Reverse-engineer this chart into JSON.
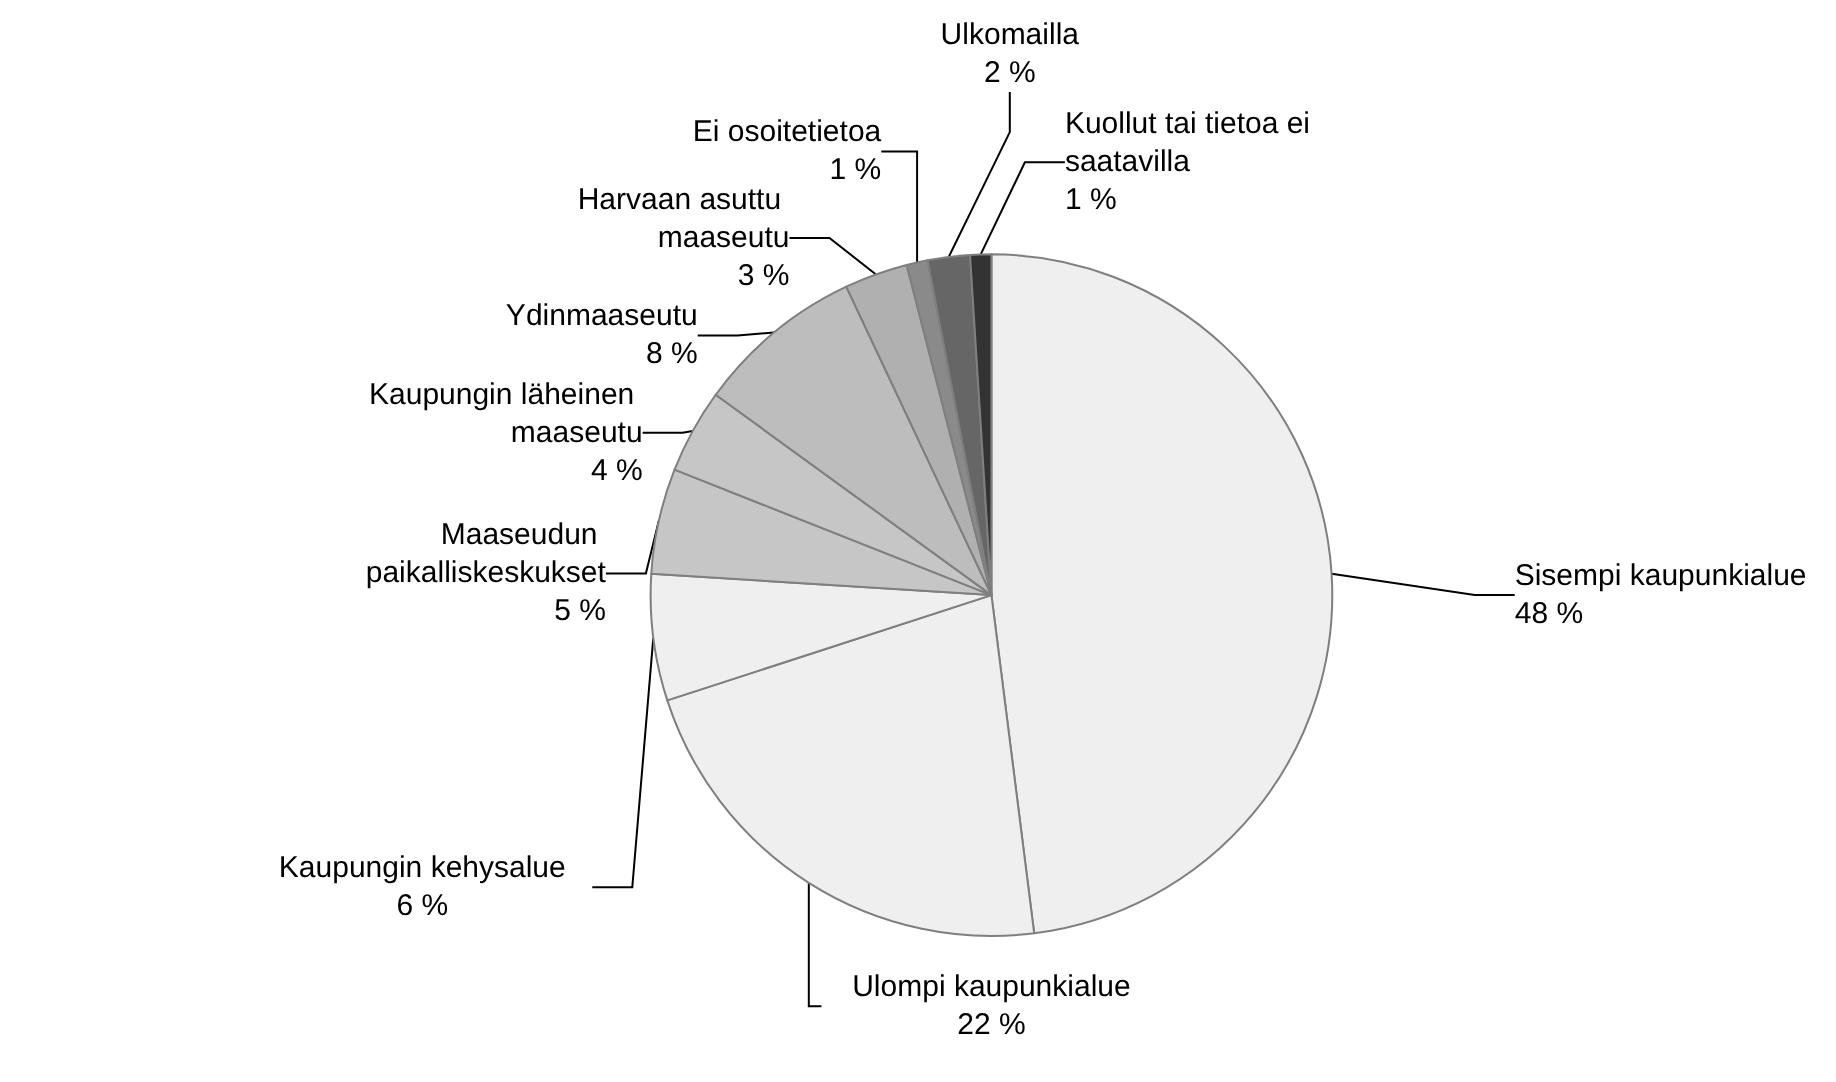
{
  "chart_data": {
    "type": "pie",
    "categories": [
      "Sisempi kaupunkialue",
      "Ulompi kaupunkialue",
      "Kaupungin kehysalue",
      "Maaseudun paikalliskeskukset",
      "Kaupungin läheinen maaseutu",
      "Ydinmaaseutu",
      "Harvaan asuttu maaseutu",
      "Ei osoitetietoa",
      "Ulkomailla",
      "Kuollut tai tietoa ei saatavilla"
    ],
    "values": [
      48,
      22,
      6,
      5,
      4,
      8,
      3,
      1,
      2,
      1
    ],
    "value_labels": [
      "48 %",
      "22 %",
      "6 %",
      "5 %",
      "4 %",
      "8 %",
      "3 %",
      "1 %",
      "2 %",
      "1 %"
    ],
    "colors": [
      "#efefef",
      "#efefef",
      "#efefef",
      "#c6c6c6",
      "#c6c6c6",
      "#bdbdbd",
      "#b0b0b0",
      "#8a8a8a",
      "#666666",
      "#333333"
    ],
    "legend": false
  }
}
